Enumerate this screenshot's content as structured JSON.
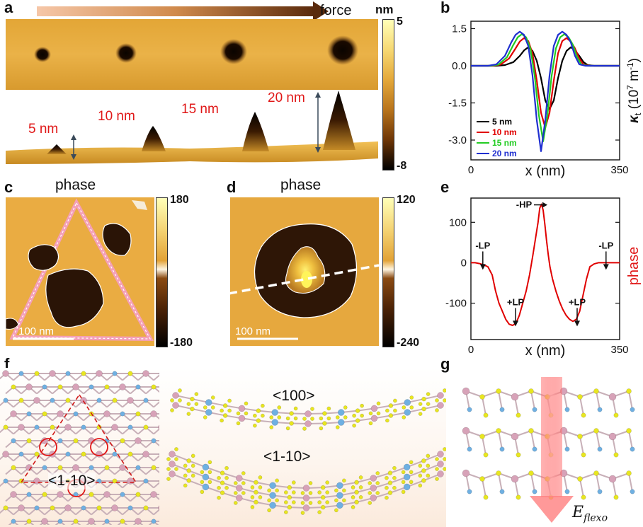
{
  "figure": {
    "panels": {
      "a": {
        "label": "a",
        "arrow_label": "force",
        "colorbar": {
          "unit": "nm",
          "max": "5",
          "min": "-8"
        },
        "peak_labels": [
          "5 nm",
          "10 nm",
          "15 nm",
          "20 nm"
        ]
      },
      "b": {
        "label": "b"
      },
      "c": {
        "label": "c",
        "title": "phase",
        "colorbar": {
          "max": "180",
          "min": "-180"
        },
        "scalebar": "100 nm"
      },
      "d": {
        "label": "d",
        "title": "phase",
        "colorbar": {
          "max": "120",
          "min": "-240"
        },
        "scalebar": "100 nm"
      },
      "e": {
        "label": "e"
      },
      "f": {
        "label": "f",
        "dir_label_triangle": "<1-10>",
        "dir_label_top": "<100>",
        "dir_label_bottom": "<1-10>"
      },
      "g": {
        "label": "g",
        "field_label": "E",
        "field_subscript": "flexo"
      }
    }
  },
  "chart_data": [
    {
      "panel": "b",
      "type": "line",
      "xlabel": "x (nm)",
      "ylabel": "κt (10^7 m^-1)",
      "ylabel_display": {
        "symbol": "κ",
        "sub": "t",
        "unit": "(10",
        "exp1": "7",
        "mid": " m",
        "exp2": "-1",
        "end": ")"
      },
      "xlim": [
        0,
        350
      ],
      "ylim": [
        -3.8,
        1.8
      ],
      "xticks": [
        "0",
        "350"
      ],
      "yticks": [
        1.5,
        0.0,
        -1.5,
        -3.0
      ],
      "ytick_labels": [
        "1.5",
        "0.0",
        "-1.5",
        "-3.0"
      ],
      "legend_position": "bottom-left",
      "series": [
        {
          "name": "5 nm",
          "color": "#000000",
          "x": [
            0,
            60,
            80,
            100,
            115,
            125,
            135,
            145,
            155,
            165,
            175,
            185,
            195,
            205,
            215,
            225,
            235,
            245,
            255,
            265,
            275,
            290,
            310,
            350
          ],
          "y": [
            0,
            0,
            0.03,
            0.15,
            0.4,
            0.62,
            0.75,
            0.6,
            0.2,
            -0.5,
            -1.4,
            -1.75,
            -1.4,
            -0.5,
            0.2,
            0.6,
            0.75,
            0.62,
            0.4,
            0.15,
            0.03,
            0,
            0,
            0
          ]
        },
        {
          "name": "10 nm",
          "color": "#e00000",
          "x": [
            0,
            50,
            70,
            90,
            105,
            115,
            125,
            135,
            145,
            155,
            165,
            175,
            185,
            195,
            205,
            215,
            225,
            235,
            245,
            255,
            265,
            280,
            300,
            350
          ],
          "y": [
            0,
            0,
            0.05,
            0.3,
            0.7,
            0.98,
            1.12,
            1.0,
            0.5,
            -0.6,
            -1.9,
            -2.5,
            -1.9,
            -0.6,
            0.5,
            1.0,
            1.12,
            0.98,
            0.7,
            0.3,
            0.05,
            0,
            0,
            0
          ]
        },
        {
          "name": "15 nm",
          "color": "#22cc22",
          "x": [
            0,
            45,
            65,
            85,
            100,
            110,
            120,
            130,
            140,
            150,
            160,
            170,
            180,
            190,
            200,
            210,
            220,
            230,
            240,
            250,
            260,
            275,
            300,
            350
          ],
          "y": [
            0,
            0,
            0.05,
            0.35,
            0.85,
            1.15,
            1.28,
            1.15,
            0.7,
            -0.4,
            -2.0,
            -3.05,
            -2.0,
            -0.4,
            0.7,
            1.15,
            1.28,
            1.15,
            0.85,
            0.35,
            0.05,
            0,
            0,
            0
          ]
        },
        {
          "name": "20 nm",
          "color": "#1f2fd0",
          "x": [
            0,
            40,
            60,
            80,
            95,
            105,
            115,
            125,
            135,
            145,
            155,
            165,
            175,
            185,
            195,
            205,
            215,
            225,
            235,
            245,
            255,
            270,
            300,
            350
          ],
          "y": [
            0,
            0,
            0.06,
            0.4,
            0.95,
            1.25,
            1.38,
            1.25,
            0.8,
            -0.4,
            -2.2,
            -3.45,
            -2.2,
            -0.4,
            0.8,
            1.25,
            1.38,
            1.25,
            0.95,
            0.4,
            0.06,
            0,
            0,
            0
          ]
        }
      ]
    },
    {
      "panel": "e",
      "type": "line",
      "xlabel": "x (nm)",
      "ylabel": "phase",
      "xlim": [
        0,
        350
      ],
      "ylim": [
        -190,
        160
      ],
      "xticks": [
        "0",
        "350"
      ],
      "yticks": [
        100,
        0,
        -100
      ],
      "ytick_labels": [
        "100",
        "0",
        "-100"
      ],
      "annotations": [
        {
          "text": "-LP",
          "x": 28,
          "y": 35
        },
        {
          "text": "+LP",
          "x": 105,
          "y": -105
        },
        {
          "text": "-HP",
          "x": 155,
          "y": 145
        },
        {
          "text": "+LP",
          "x": 250,
          "y": -105
        },
        {
          "text": "-LP",
          "x": 318,
          "y": 35
        }
      ],
      "series": [
        {
          "name": "phase",
          "color": "#e00000",
          "x": [
            0,
            10,
            20,
            30,
            40,
            50,
            58,
            66,
            74,
            82,
            90,
            98,
            106,
            114,
            122,
            130,
            138,
            146,
            152,
            158,
            162,
            166,
            170,
            174,
            178,
            182,
            186,
            192,
            200,
            208,
            216,
            224,
            232,
            240,
            248,
            256,
            264,
            272,
            280,
            290,
            300,
            310,
            320,
            330,
            340,
            350
          ],
          "y": [
            0,
            0,
            -2,
            -5,
            -10,
            -30,
            -70,
            -100,
            -120,
            -140,
            -152,
            -155,
            -150,
            -130,
            -100,
            -70,
            -30,
            20,
            60,
            100,
            135,
            145,
            130,
            95,
            55,
            20,
            -10,
            -40,
            -70,
            -95,
            -115,
            -130,
            -140,
            -145,
            -140,
            -120,
            -80,
            -40,
            -10,
            -3,
            0,
            0,
            0,
            0,
            0,
            0
          ]
        }
      ]
    }
  ]
}
